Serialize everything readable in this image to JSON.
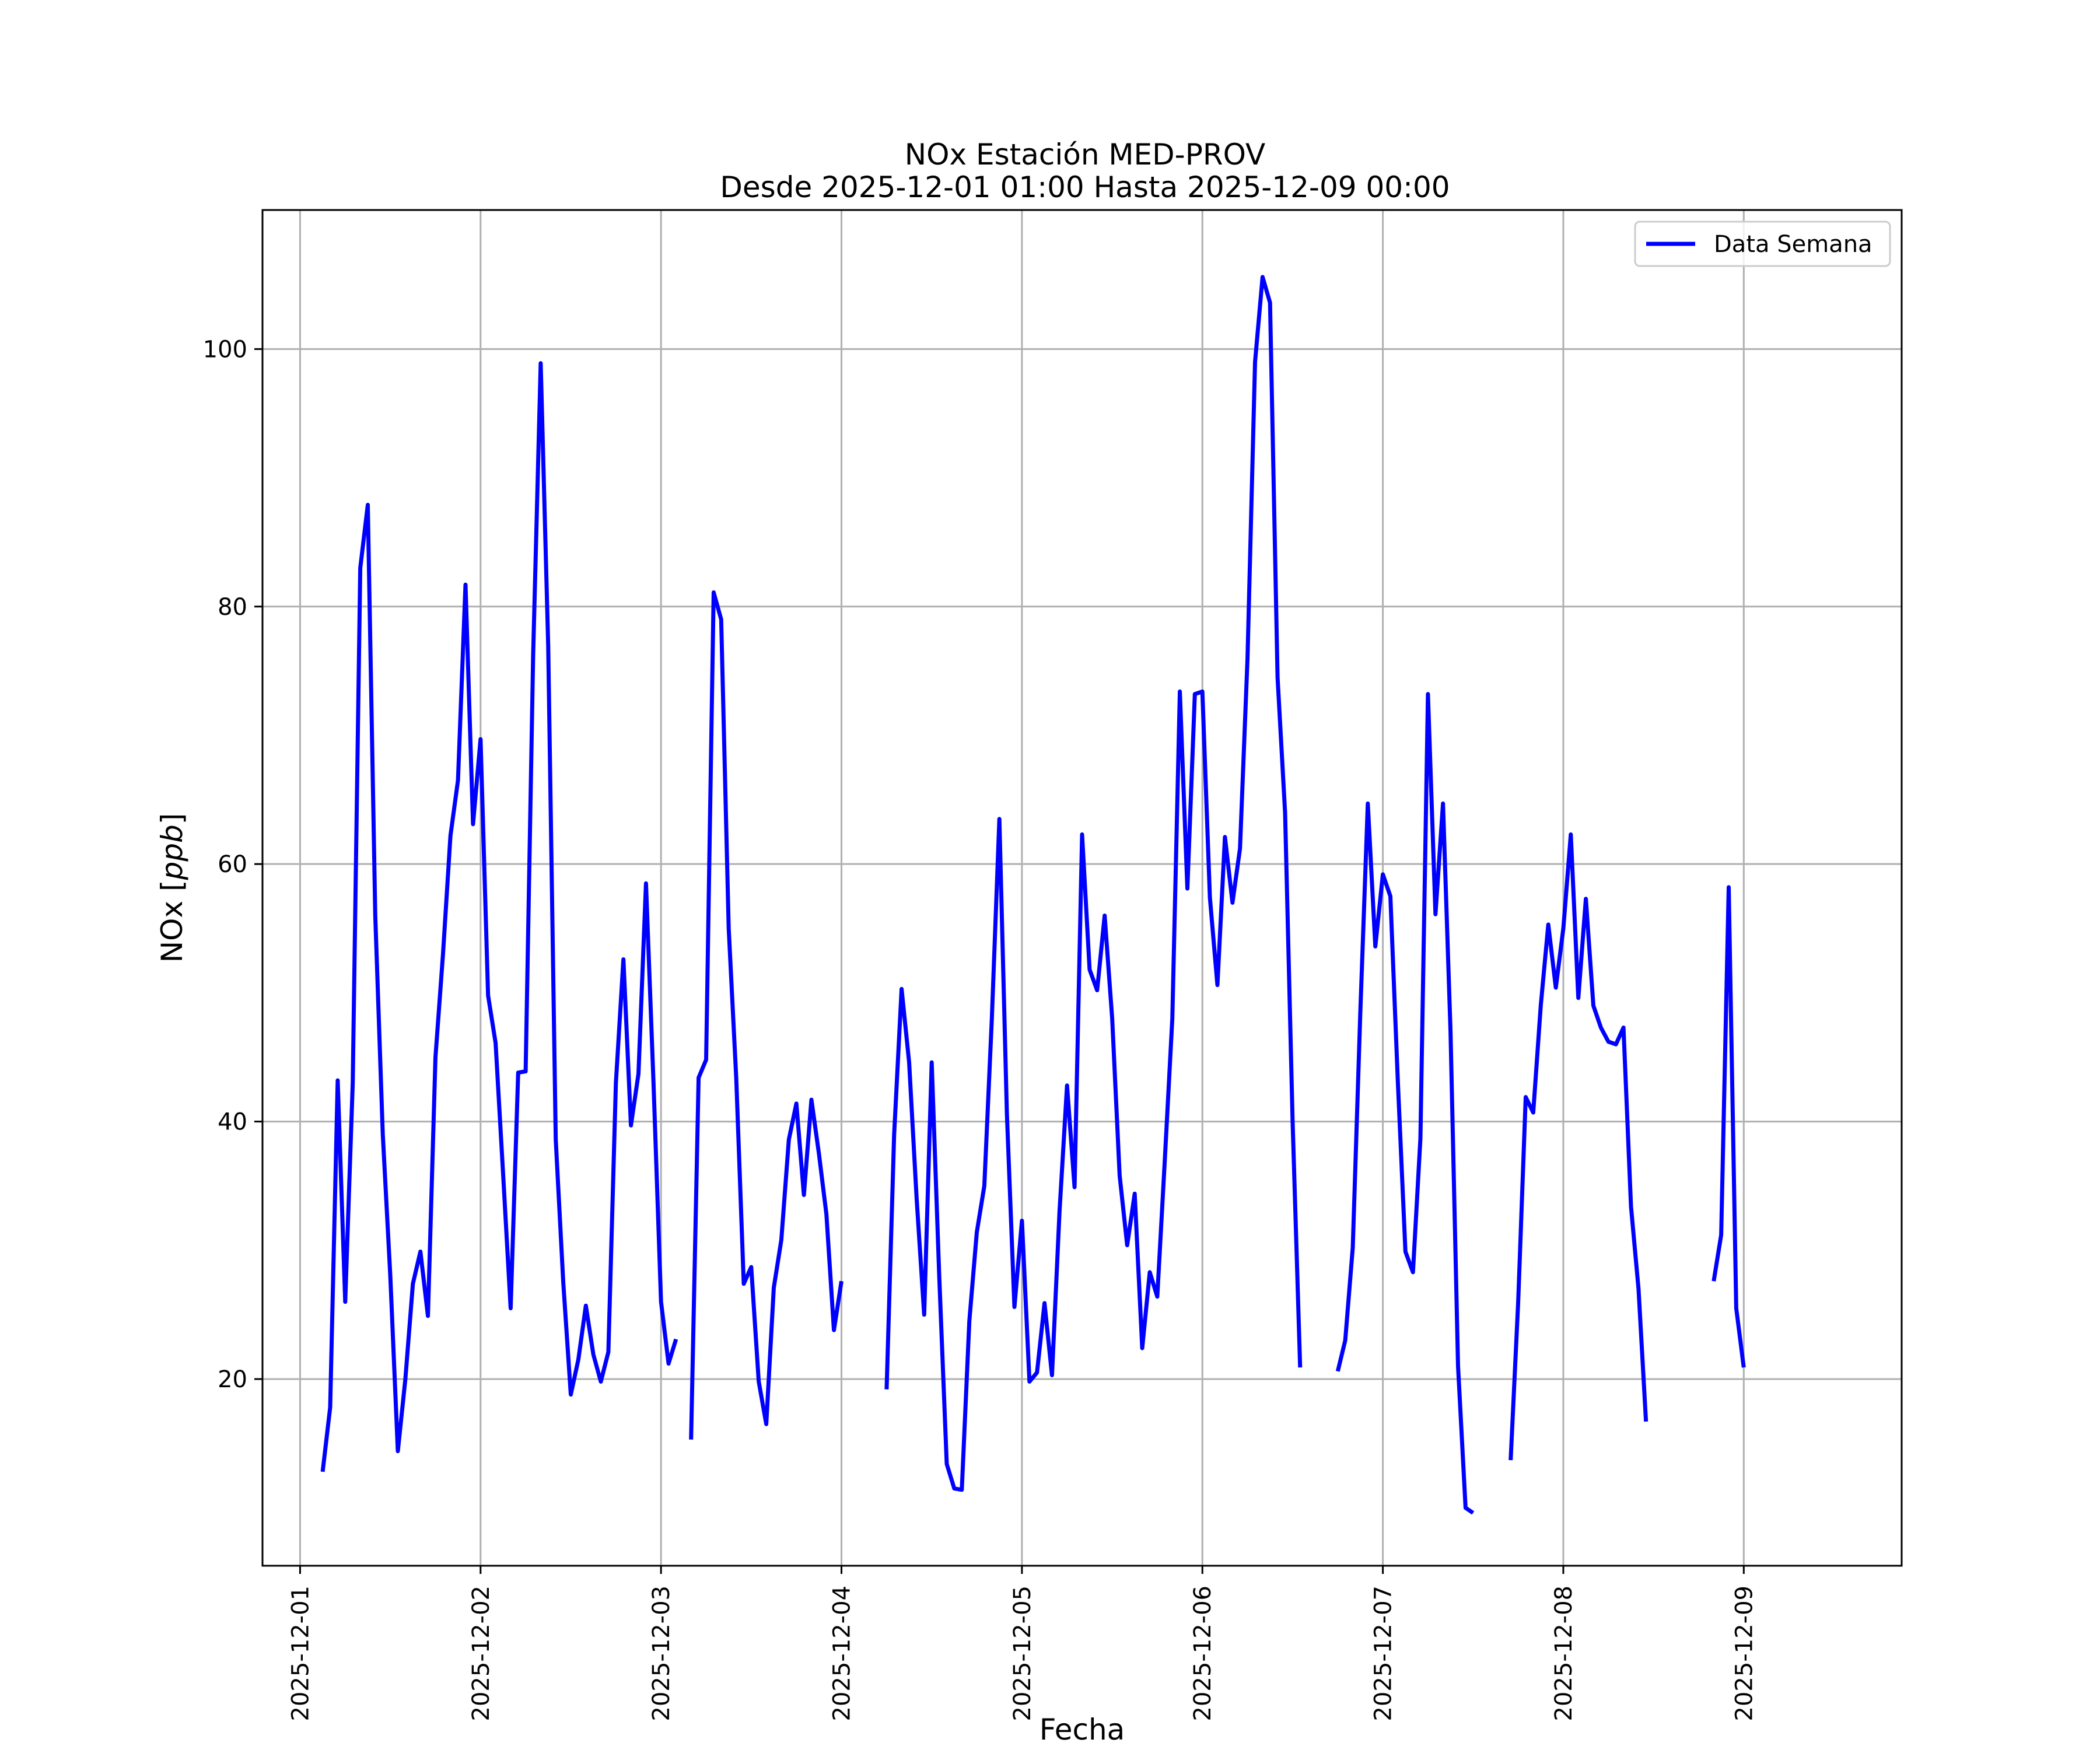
{
  "chart_data": {
    "type": "line",
    "title": "NOx Estación MED-PROV",
    "subtitle": "Desde 2025-12-01 01:00 Hasta 2025-12-09 00:00",
    "xlabel": "Fecha",
    "ylabel_text": "NOx [",
    "ylabel_unit": "ppb",
    "ylabel_close": "]",
    "xlim": [
      "2025-11-30 19:00",
      "2025-12-09 21:00"
    ],
    "ylim": [
      5.5,
      110.8
    ],
    "x_ticks": [
      "2025-12-01",
      "2025-12-02",
      "2025-12-03",
      "2025-12-04",
      "2025-12-05",
      "2025-12-06",
      "2025-12-07",
      "2025-12-08",
      "2025-12-09"
    ],
    "y_ticks": [
      20,
      40,
      60,
      80,
      100
    ],
    "grid": true,
    "legend_position": "top-right",
    "series": [
      {
        "name": "Data Semana",
        "color": "#0000ff",
        "points": [
          [
            "2025-12-01 03:00",
            12.8
          ],
          [
            "2025-12-01 04:00",
            17.8
          ],
          [
            "2025-12-01 05:00",
            43.2
          ],
          [
            "2025-12-01 06:00",
            26.0
          ],
          [
            "2025-12-01 07:00",
            43.0
          ],
          [
            "2025-12-01 08:00",
            83.0
          ],
          [
            "2025-12-01 09:00",
            87.9
          ],
          [
            "2025-12-01 10:00",
            56.0
          ],
          [
            "2025-12-01 11:00",
            39.0
          ],
          [
            "2025-12-01 12:00",
            28.0
          ],
          [
            "2025-12-01 13:00",
            14.4
          ],
          [
            "2025-12-01 14:00",
            20.0
          ],
          [
            "2025-12-01 15:00",
            27.4
          ],
          [
            "2025-12-01 16:00",
            29.9
          ],
          [
            "2025-12-01 17:00",
            24.9
          ],
          [
            "2025-12-01 18:00",
            45.0
          ],
          [
            "2025-12-01 19:00",
            53.0
          ],
          [
            "2025-12-01 20:00",
            62.2
          ],
          [
            "2025-12-01 21:00",
            66.5
          ],
          [
            "2025-12-01 22:00",
            81.7
          ],
          [
            "2025-12-01 23:00",
            63.1
          ],
          [
            "2025-12-02 00:00",
            69.7
          ],
          [
            "2025-12-02 01:00",
            49.8
          ],
          [
            "2025-12-02 02:00",
            46.1
          ],
          [
            "2025-12-02 03:00",
            35.9
          ],
          [
            "2025-12-02 04:00",
            25.5
          ],
          [
            "2025-12-02 05:00",
            43.8
          ],
          [
            "2025-12-02 06:00",
            43.9
          ],
          [
            "2025-12-02 07:00",
            76.3
          ],
          [
            "2025-12-02 08:00",
            98.9
          ],
          [
            "2025-12-02 09:00",
            76.9
          ],
          [
            "2025-12-02 10:00",
            38.6
          ],
          [
            "2025-12-02 11:00",
            27.5
          ],
          [
            "2025-12-02 12:00",
            18.8
          ],
          [
            "2025-12-02 13:00",
            21.5
          ],
          [
            "2025-12-02 14:00",
            25.7
          ],
          [
            "2025-12-02 15:00",
            21.9
          ],
          [
            "2025-12-02 16:00",
            19.8
          ],
          [
            "2025-12-02 17:00",
            22.1
          ],
          [
            "2025-12-02 18:00",
            43.0
          ],
          [
            "2025-12-02 19:00",
            52.6
          ],
          [
            "2025-12-02 20:00",
            39.7
          ],
          [
            "2025-12-02 21:00",
            43.7
          ],
          [
            "2025-12-02 22:00",
            58.5
          ],
          [
            "2025-12-02 23:00",
            43.0
          ],
          [
            "2025-12-03 00:00",
            26.0
          ],
          [
            "2025-12-03 01:00",
            21.2
          ],
          [
            "2025-12-03 02:00",
            23.1
          ],
          [
            "2025-12-03 03:00",
            null
          ],
          [
            "2025-12-03 04:00",
            15.3
          ],
          [
            "2025-12-03 05:00",
            43.4
          ],
          [
            "2025-12-03 06:00",
            44.8
          ],
          [
            "2025-12-03 07:00",
            81.1
          ],
          [
            "2025-12-03 08:00",
            79.0
          ],
          [
            "2025-12-03 09:00",
            55.0
          ],
          [
            "2025-12-03 10:00",
            43.4
          ],
          [
            "2025-12-03 11:00",
            27.4
          ],
          [
            "2025-12-03 12:00",
            28.7
          ],
          [
            "2025-12-03 13:00",
            19.8
          ],
          [
            "2025-12-03 14:00",
            16.5
          ],
          [
            "2025-12-03 15:00",
            27.1
          ],
          [
            "2025-12-03 16:00",
            30.8
          ],
          [
            "2025-12-03 17:00",
            38.6
          ],
          [
            "2025-12-03 18:00",
            41.4
          ],
          [
            "2025-12-03 19:00",
            34.3
          ],
          [
            "2025-12-03 20:00",
            41.7
          ],
          [
            "2025-12-03 21:00",
            37.5
          ],
          [
            "2025-12-03 22:00",
            32.8
          ],
          [
            "2025-12-03 23:00",
            23.8
          ],
          [
            "2025-12-04 00:00",
            27.6
          ],
          [
            "2025-12-04 01:00",
            null
          ],
          [
            "2025-12-04 06:00",
            19.2
          ],
          [
            "2025-12-04 07:00",
            39.0
          ],
          [
            "2025-12-04 08:00",
            50.3
          ],
          [
            "2025-12-04 09:00",
            44.6
          ],
          [
            "2025-12-04 10:00",
            34.0
          ],
          [
            "2025-12-04 11:00",
            25.0
          ],
          [
            "2025-12-04 12:00",
            44.6
          ],
          [
            "2025-12-04 13:00",
            28.0
          ],
          [
            "2025-12-04 14:00",
            13.4
          ],
          [
            "2025-12-04 15:00",
            11.5
          ],
          [
            "2025-12-04 16:00",
            11.4
          ],
          [
            "2025-12-04 17:00",
            24.5
          ],
          [
            "2025-12-04 18:00",
            31.4
          ],
          [
            "2025-12-04 19:00",
            35.0
          ],
          [
            "2025-12-04 20:00",
            48.0
          ],
          [
            "2025-12-04 21:00",
            63.5
          ],
          [
            "2025-12-04 22:00",
            40.6
          ],
          [
            "2025-12-04 23:00",
            25.6
          ],
          [
            "2025-12-05 00:00",
            32.3
          ],
          [
            "2025-12-05 01:00",
            19.8
          ],
          [
            "2025-12-05 02:00",
            20.5
          ],
          [
            "2025-12-05 03:00",
            25.9
          ],
          [
            "2025-12-05 04:00",
            20.3
          ],
          [
            "2025-12-05 05:00",
            33.0
          ],
          [
            "2025-12-05 06:00",
            42.8
          ],
          [
            "2025-12-05 07:00",
            34.9
          ],
          [
            "2025-12-05 08:00",
            62.3
          ],
          [
            "2025-12-05 09:00",
            51.8
          ],
          [
            "2025-12-05 10:00",
            50.2
          ],
          [
            "2025-12-05 11:00",
            56.0
          ],
          [
            "2025-12-05 12:00",
            48.0
          ],
          [
            "2025-12-05 13:00",
            35.8
          ],
          [
            "2025-12-05 14:00",
            30.4
          ],
          [
            "2025-12-05 15:00",
            34.4
          ],
          [
            "2025-12-05 16:00",
            22.4
          ],
          [
            "2025-12-05 17:00",
            28.3
          ],
          [
            "2025-12-05 18:00",
            26.4
          ],
          [
            "2025-12-05 19:00",
            37.0
          ],
          [
            "2025-12-05 20:00",
            48.0
          ],
          [
            "2025-12-05 21:00",
            73.4
          ],
          [
            "2025-12-05 22:00",
            58.1
          ],
          [
            "2025-12-05 23:00",
            73.2
          ],
          [
            "2025-12-06 00:00",
            73.4
          ],
          [
            "2025-12-06 01:00",
            57.4
          ],
          [
            "2025-12-06 02:00",
            50.6
          ],
          [
            "2025-12-06 03:00",
            62.1
          ],
          [
            "2025-12-06 04:00",
            57.0
          ],
          [
            "2025-12-06 05:00",
            61.2
          ],
          [
            "2025-12-06 06:00",
            76.0
          ],
          [
            "2025-12-06 07:00",
            99.0
          ],
          [
            "2025-12-06 08:00",
            105.6
          ],
          [
            "2025-12-06 09:00",
            103.6
          ],
          [
            "2025-12-06 10:00",
            74.5
          ],
          [
            "2025-12-06 11:00",
            64.0
          ],
          [
            "2025-12-06 12:00",
            40.0
          ],
          [
            "2025-12-06 13:00",
            20.9
          ],
          [
            "2025-12-06 14:00",
            null
          ],
          [
            "2025-12-06 18:00",
            20.6
          ],
          [
            "2025-12-06 19:00",
            23.0
          ],
          [
            "2025-12-06 20:00",
            30.2
          ],
          [
            "2025-12-06 21:00",
            48.4
          ],
          [
            "2025-12-06 22:00",
            64.7
          ],
          [
            "2025-12-06 23:00",
            53.6
          ],
          [
            "2025-12-07 00:00",
            59.2
          ],
          [
            "2025-12-07 01:00",
            57.5
          ],
          [
            "2025-12-07 02:00",
            43.0
          ],
          [
            "2025-12-07 03:00",
            29.9
          ],
          [
            "2025-12-07 04:00",
            28.3
          ],
          [
            "2025-12-07 05:00",
            38.7
          ],
          [
            "2025-12-07 06:00",
            73.2
          ],
          [
            "2025-12-07 07:00",
            56.1
          ],
          [
            "2025-12-07 08:00",
            64.7
          ],
          [
            "2025-12-07 09:00",
            47.0
          ],
          [
            "2025-12-07 10:00",
            21.0
          ],
          [
            "2025-12-07 11:00",
            10.0
          ],
          [
            "2025-12-07 12:00",
            9.6
          ],
          [
            "2025-12-07 13:00",
            null
          ],
          [
            "2025-12-07 17:00",
            13.7
          ],
          [
            "2025-12-07 18:00",
            26.0
          ],
          [
            "2025-12-07 19:00",
            41.9
          ],
          [
            "2025-12-07 20:00",
            40.7
          ],
          [
            "2025-12-07 21:00",
            49.0
          ],
          [
            "2025-12-07 22:00",
            55.3
          ],
          [
            "2025-12-07 23:00",
            50.4
          ],
          [
            "2025-12-08 00:00",
            55.0
          ],
          [
            "2025-12-08 01:00",
            62.3
          ],
          [
            "2025-12-08 02:00",
            49.6
          ],
          [
            "2025-12-08 03:00",
            57.3
          ],
          [
            "2025-12-08 04:00",
            49.0
          ],
          [
            "2025-12-08 05:00",
            47.3
          ],
          [
            "2025-12-08 06:00",
            46.2
          ],
          [
            "2025-12-08 07:00",
            46.0
          ],
          [
            "2025-12-08 08:00",
            47.3
          ],
          [
            "2025-12-08 09:00",
            33.4
          ],
          [
            "2025-12-08 10:00",
            27.0
          ],
          [
            "2025-12-08 11:00",
            16.7
          ],
          [
            "2025-12-08 12:00",
            null
          ],
          [
            "2025-12-08 20:00",
            27.6
          ],
          [
            "2025-12-08 21:00",
            31.2
          ],
          [
            "2025-12-08 22:00",
            58.2
          ],
          [
            "2025-12-08 23:00",
            25.5
          ],
          [
            "2025-12-09 00:00",
            20.9
          ]
        ]
      }
    ]
  }
}
